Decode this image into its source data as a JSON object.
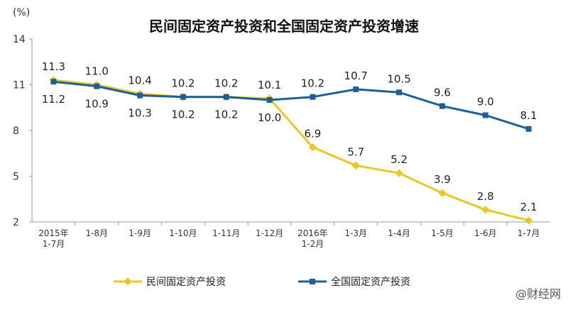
{
  "chart_data": {
    "type": "line",
    "title": "民间固定资产投资和全国固定资产投资增速",
    "ylabel": "(%)",
    "xlabel": "",
    "ylim": [
      2,
      14
    ],
    "yticks": [
      "14",
      "11",
      "8",
      "5",
      "2"
    ],
    "ytick_values": [
      14,
      11,
      8,
      5,
      2
    ],
    "categories": [
      [
        "2015年",
        "1-7月"
      ],
      [
        "1-8月"
      ],
      [
        "1-9月"
      ],
      [
        "1-10月"
      ],
      [
        "1-11月"
      ],
      [
        "1-12月"
      ],
      [
        "2016年",
        "1-2月"
      ],
      [
        "1-3月"
      ],
      [
        "1-4月"
      ],
      [
        "1-5月"
      ],
      [
        "1-6月"
      ],
      [
        "1-7月"
      ]
    ],
    "series": [
      {
        "name": "民间固定资产投资",
        "color": "#e8c72a",
        "values": [
          11.3,
          11.0,
          10.4,
          10.2,
          10.2,
          10.1,
          6.9,
          5.7,
          5.2,
          3.9,
          2.8,
          2.1
        ],
        "labels": [
          "11.3",
          "11.0",
          "10.4",
          "10.2",
          "10.2",
          "10.1",
          "6.9",
          "5.7",
          "5.2",
          "3.9",
          "2.8",
          "2.1"
        ]
      },
      {
        "name": "全国固定资产投资",
        "color": "#1f5f96",
        "values": [
          11.2,
          10.9,
          10.3,
          10.2,
          10.2,
          10.0,
          10.2,
          10.7,
          10.5,
          9.6,
          9.0,
          8.1
        ],
        "labels": [
          "11.2",
          "10.9",
          "10.3",
          "10.2",
          "10.2",
          "10.0",
          "10.2",
          "10.7",
          "10.5",
          "9.6",
          "9.0",
          "8.1"
        ]
      }
    ],
    "grid": false,
    "legend_position": "bottom"
  },
  "watermark": "@财经网"
}
